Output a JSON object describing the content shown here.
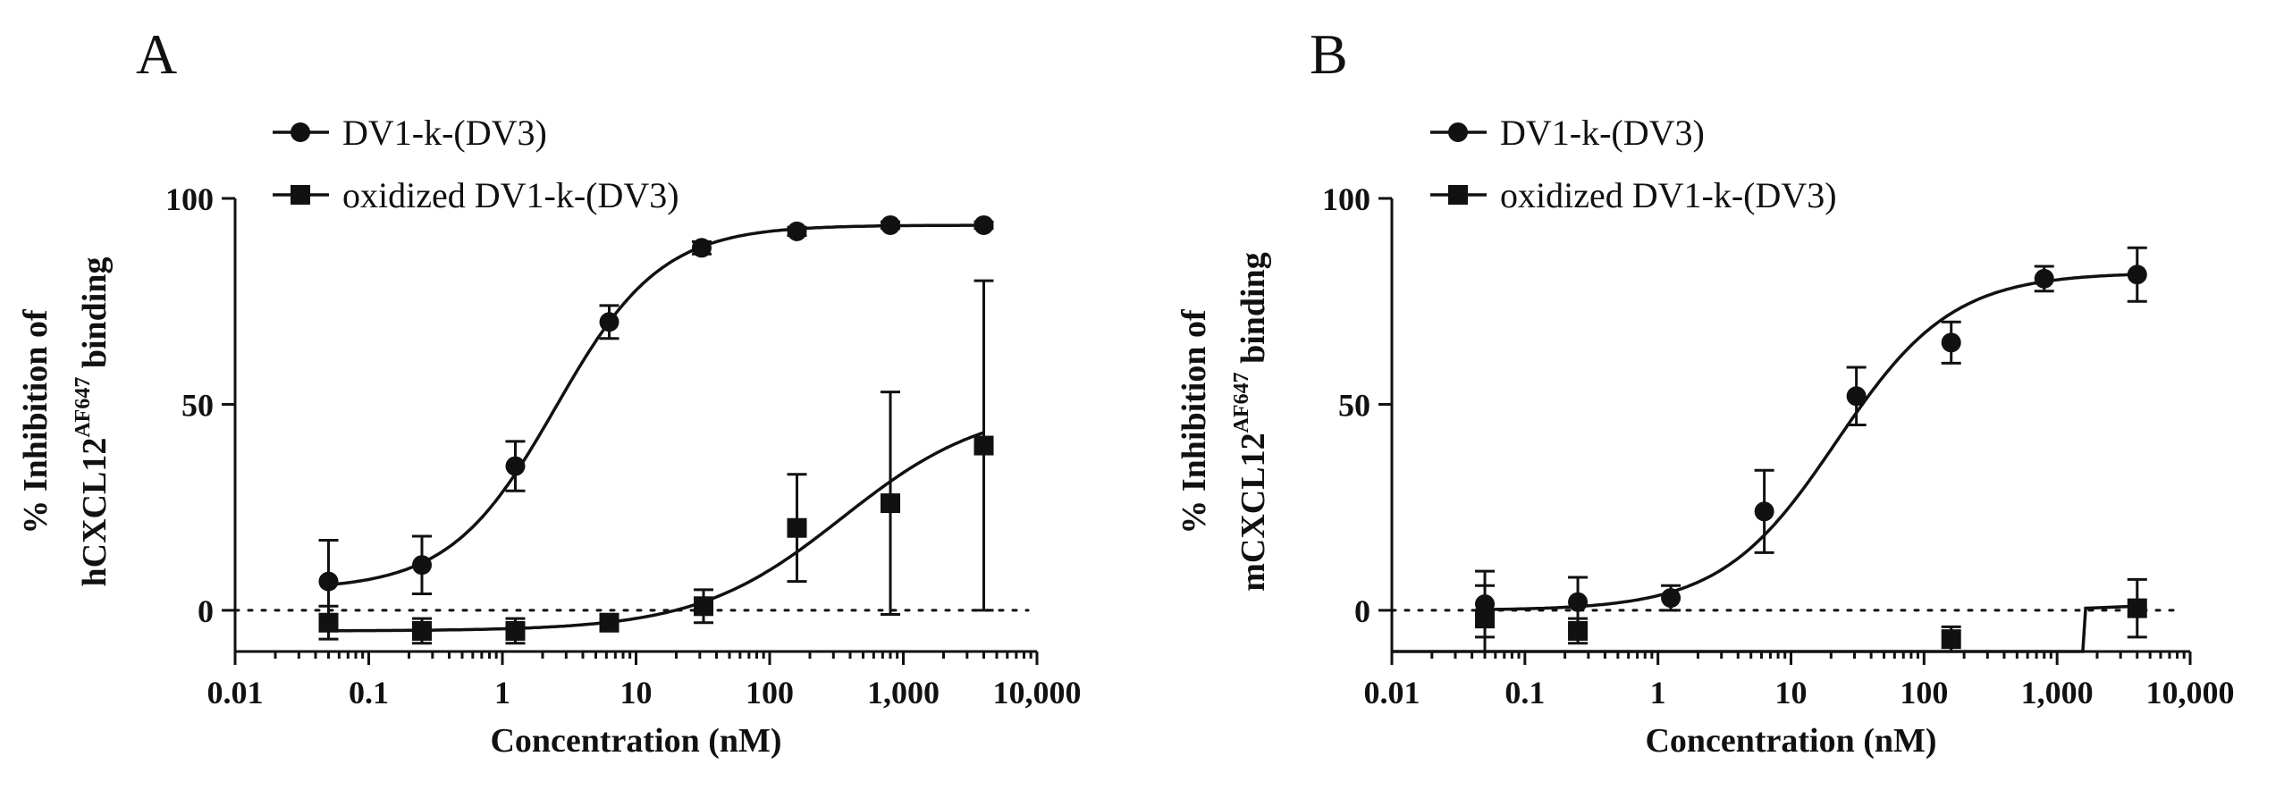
{
  "chart_data": [
    {
      "panel": "A",
      "type": "scatter",
      "xscale": "log",
      "xlim": [
        0.01,
        10000
      ],
      "ylim": [
        -10,
        100
      ],
      "xticks": [
        0.01,
        0.1,
        1,
        10,
        100,
        1000,
        10000
      ],
      "xtick_labels": [
        "0.01",
        "0.1",
        "1",
        "10",
        "100",
        "1,000",
        "10,000"
      ],
      "yticks": [
        0,
        50,
        100
      ],
      "ytick_labels": [
        "0",
        "50",
        "100"
      ],
      "xlabel": "Concentration (nM)",
      "ylabel_main": "% Inhibition of",
      "ylabel_prefix": "hCXCL12",
      "ylabel_sup": "AF647",
      "ylabel_suffix": " binding",
      "reference_line_y": 0,
      "series": [
        {
          "name": "DV1-k-(DV3)",
          "marker": "circle",
          "x": [
            0.05,
            0.25,
            1.25,
            6.3,
            31,
            160,
            800,
            4000
          ],
          "y": [
            7,
            11,
            35,
            70,
            88,
            92,
            93.5,
            93.5
          ],
          "err": [
            10,
            7,
            6,
            4,
            1.5,
            1,
            0.8,
            0.8
          ],
          "fit": {
            "bottom": 5,
            "top": 93.5,
            "ec50": 2.5,
            "hill": 1.1
          }
        },
        {
          "name": "oxidized DV1-k-(DV3)",
          "marker": "square",
          "x": [
            0.05,
            0.25,
            1.25,
            6.3,
            32,
            160,
            800,
            4000
          ],
          "y": [
            -3,
            -5,
            -5,
            -3,
            1,
            20,
            26,
            40
          ],
          "err": [
            4,
            3,
            3,
            1.5,
            4,
            13,
            27,
            40
          ],
          "fit": {
            "bottom": -5,
            "top": 50,
            "ec50": 350,
            "hill": 0.8
          }
        }
      ]
    },
    {
      "panel": "B",
      "type": "scatter",
      "xscale": "log",
      "xlim": [
        0.01,
        10000
      ],
      "ylim": [
        -10,
        100
      ],
      "xticks": [
        0.01,
        0.1,
        1,
        10,
        100,
        1000,
        10000
      ],
      "xtick_labels": [
        "0.01",
        "0.1",
        "1",
        "10",
        "100",
        "1,000",
        "10,000"
      ],
      "yticks": [
        0,
        50,
        100
      ],
      "ytick_labels": [
        "0",
        "50",
        "100"
      ],
      "xlabel": "Concentration (nM)",
      "ylabel_main": "% Inhibition of",
      "ylabel_prefix": "mCXCL12",
      "ylabel_sup": "AF647",
      "ylabel_suffix": " binding",
      "reference_line_y": 0,
      "series": [
        {
          "name": "DV1-k-(DV3)",
          "marker": "circle",
          "x": [
            0.05,
            0.25,
            1.25,
            6.3,
            31,
            160,
            800,
            4000
          ],
          "y": [
            1.5,
            2,
            3,
            24,
            52,
            65,
            80.5,
            81.5
          ],
          "err": [
            8,
            6,
            3,
            10,
            7,
            5,
            3,
            6.5
          ],
          "fit": {
            "bottom": 0,
            "top": 82,
            "ec50": 22,
            "hill": 1.0
          }
        },
        {
          "name": "oxidized DV1-k-(DV3)",
          "marker": "square",
          "x": [
            0.05,
            0.25,
            160,
            4000
          ],
          "y": [
            -2,
            -5,
            -7,
            0.5
          ],
          "err": [
            8,
            3,
            3,
            7
          ],
          "fit_path": [
            [
              0.01,
              -10
            ],
            [
              1560,
              -10
            ],
            [
              1640,
              0.5
            ],
            [
              4000,
              1
            ]
          ]
        }
      ]
    }
  ]
}
